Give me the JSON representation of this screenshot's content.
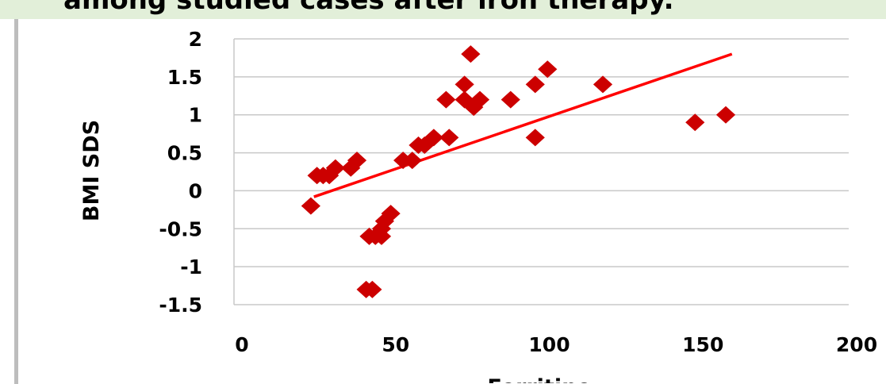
{
  "title_banner": {
    "text": "among studied cases after iron therapy."
  },
  "chart_data": {
    "type": "scatter",
    "title": "",
    "xlabel": "Ferritine",
    "ylabel": "BMI SDS",
    "xlim": [
      0,
      200
    ],
    "ylim": [
      -1.5,
      2
    ],
    "xticks": [
      "0",
      "50",
      "100",
      "150",
      "200"
    ],
    "yticks": [
      "2",
      "1.5",
      "1",
      "0.5",
      "0",
      "-0.5",
      "-1",
      "-1.5"
    ],
    "grid": "horizontal",
    "legend": "none",
    "marker_color": "#cc0000",
    "trendline_color": "#ff0000",
    "points": [
      [
        25,
        -0.2
      ],
      [
        27,
        0.2
      ],
      [
        29,
        0.2
      ],
      [
        31,
        0.2
      ],
      [
        33,
        0.3
      ],
      [
        38,
        0.3
      ],
      [
        40,
        0.4
      ],
      [
        43,
        -1.3
      ],
      [
        45,
        -1.3
      ],
      [
        44,
        -0.6
      ],
      [
        46,
        -0.6
      ],
      [
        48,
        -0.6
      ],
      [
        48,
        -0.5
      ],
      [
        49,
        -0.4
      ],
      [
        51,
        -0.3
      ],
      [
        55,
        0.4
      ],
      [
        58,
        0.4
      ],
      [
        60,
        0.6
      ],
      [
        62,
        0.6
      ],
      [
        65,
        0.7
      ],
      [
        69,
        1.2
      ],
      [
        70,
        0.7
      ],
      [
        75,
        1.4
      ],
      [
        75,
        1.2
      ],
      [
        77,
        1.8
      ],
      [
        78,
        1.1
      ],
      [
        80,
        1.2
      ],
      [
        90,
        1.2
      ],
      [
        98,
        1.4
      ],
      [
        98,
        0.7
      ],
      [
        102,
        1.6
      ],
      [
        120,
        1.4
      ],
      [
        150,
        0.9
      ],
      [
        160,
        1.0
      ]
    ],
    "trendline": {
      "x": [
        26,
        162
      ],
      "y": [
        -0.08,
        1.8
      ]
    }
  }
}
